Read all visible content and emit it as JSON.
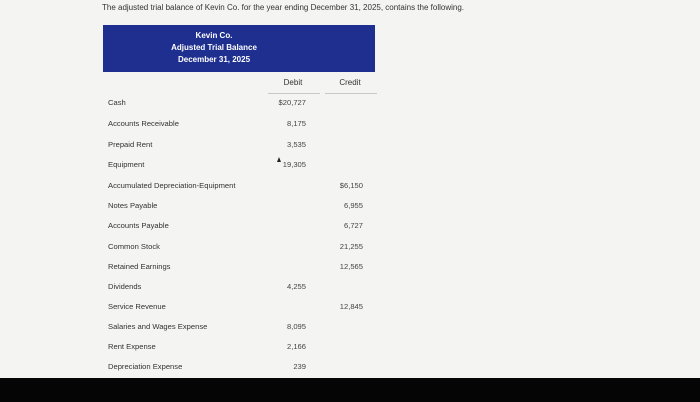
{
  "intro": "The adjusted trial balance of Kevin Co. for the year ending December 31, 2025, contains the following.",
  "header": {
    "company": "Kevin Co.",
    "report": "Adjusted Trial Balance",
    "date": "December 31, 2025"
  },
  "columns": {
    "debit": "Debit",
    "credit": "Credit"
  },
  "rows": [
    {
      "account": "Cash",
      "debit": "$20,727",
      "credit": ""
    },
    {
      "account": "Accounts Receivable",
      "debit": "8,175",
      "credit": ""
    },
    {
      "account": "Prepaid Rent",
      "debit": "3,535",
      "credit": ""
    },
    {
      "account": "Equipment",
      "debit": "19,305",
      "credit": ""
    },
    {
      "account": "Accumulated Depreciation-Equipment",
      "debit": "",
      "credit": "$6,150"
    },
    {
      "account": "Notes Payable",
      "debit": "",
      "credit": "6,955"
    },
    {
      "account": "Accounts Payable",
      "debit": "",
      "credit": "6,727"
    },
    {
      "account": "Common Stock",
      "debit": "",
      "credit": "21,255"
    },
    {
      "account": "Retained Earnings",
      "debit": "",
      "credit": "12,565"
    },
    {
      "account": "Dividends",
      "debit": "4,255",
      "credit": ""
    },
    {
      "account": "Service Revenue",
      "debit": "",
      "credit": "12,845"
    },
    {
      "account": "Salaries and Wages Expense",
      "debit": "8,095",
      "credit": ""
    },
    {
      "account": "Rent Expense",
      "debit": "2,166",
      "credit": ""
    },
    {
      "account": "Depreciation Expense",
      "debit": "239",
      "credit": ""
    }
  ]
}
